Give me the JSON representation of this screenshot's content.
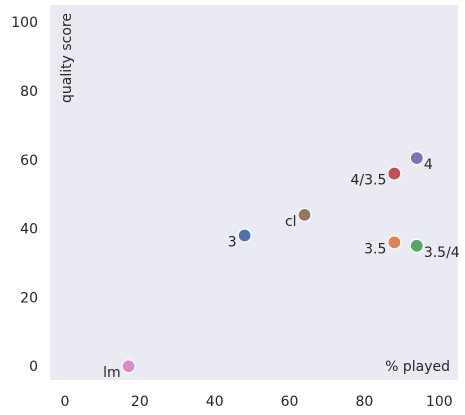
{
  "chart_data": {
    "type": "scatter",
    "title": "",
    "xlabel": "% played",
    "ylabel": "quality score",
    "xlim": [
      -4,
      105
    ],
    "ylim": [
      -4,
      105
    ],
    "xticks": [
      0,
      20,
      40,
      60,
      80,
      100
    ],
    "yticks": [
      0,
      20,
      40,
      60,
      80,
      100
    ],
    "grid": false,
    "background": "#eaeaf2",
    "points": [
      {
        "label": "3",
        "x": 48,
        "y": 38,
        "color": "#4c72b0",
        "label_pos": "left"
      },
      {
        "label": "3.5",
        "x": 88,
        "y": 36,
        "color": "#dd8452",
        "label_pos": "left"
      },
      {
        "label": "3.5/4",
        "x": 94,
        "y": 35,
        "color": "#55a868",
        "label_pos": "right"
      },
      {
        "label": "4/3.5",
        "x": 88,
        "y": 56,
        "color": "#c44e52",
        "label_pos": "left"
      },
      {
        "label": "4",
        "x": 94,
        "y": 60.5,
        "color": "#8172b3",
        "label_pos": "right"
      },
      {
        "label": "cl",
        "x": 64,
        "y": 44,
        "color": "#937860",
        "label_pos": "left"
      },
      {
        "label": "lm",
        "x": 17,
        "y": 0,
        "color": "#da8bc3",
        "label_pos": "left"
      }
    ]
  }
}
